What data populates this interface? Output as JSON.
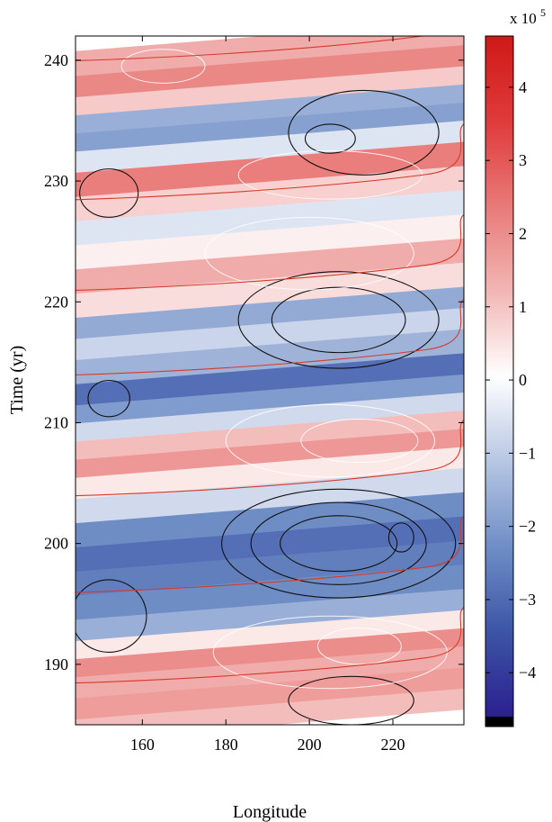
{
  "chart_data": {
    "type": "heatmap",
    "title": "",
    "xlabel": "Longitude",
    "ylabel": "Time (yr)",
    "xlim": [
      144,
      237
    ],
    "ylim": [
      185,
      242
    ],
    "x_ticks": [
      160,
      180,
      200,
      220
    ],
    "y_ticks": [
      190,
      200,
      210,
      220,
      230,
      240
    ],
    "colorbar": {
      "multiplier_base": "x 10",
      "multiplier_exponent": "5",
      "range": [
        -4.6,
        4.7
      ],
      "ticks": [
        -4,
        -3,
        -2,
        -1,
        0,
        1,
        2,
        3,
        4
      ],
      "colormap": [
        "#2b1f8f",
        "#3d55a6",
        "#6f8ec6",
        "#b7c6e3",
        "#ffffff",
        "#f2b6b4",
        "#e87a78",
        "#e03a3a",
        "#d01818"
      ],
      "low_cap_color": "#000000"
    },
    "bands": [
      {
        "t": 186.0,
        "v": 1.1
      },
      {
        "t": 187.5,
        "v": 1.7
      },
      {
        "t": 189.5,
        "v": 1.4
      },
      {
        "t": 191.0,
        "v": 2.0
      },
      {
        "t": 192.5,
        "v": 0.4
      },
      {
        "t": 194.0,
        "v": -1.6
      },
      {
        "t": 196.0,
        "v": -2.3
      },
      {
        "t": 198.0,
        "v": -2.6
      },
      {
        "t": 200.0,
        "v": -2.9
      },
      {
        "t": 202.0,
        "v": -2.3
      },
      {
        "t": 204.0,
        "v": -0.7
      },
      {
        "t": 206.0,
        "v": 0.4
      },
      {
        "t": 207.5,
        "v": 1.8
      },
      {
        "t": 209.0,
        "v": 1.1
      },
      {
        "t": 210.5,
        "v": -0.7
      },
      {
        "t": 212.0,
        "v": -2.0
      },
      {
        "t": 213.5,
        "v": -2.9
      },
      {
        "t": 215.5,
        "v": -1.5
      },
      {
        "t": 217.5,
        "v": -0.8
      },
      {
        "t": 219.0,
        "v": -1.7
      },
      {
        "t": 221.0,
        "v": 0.6
      },
      {
        "t": 223.0,
        "v": 1.4
      },
      {
        "t": 225.0,
        "v": 0.3
      },
      {
        "t": 227.0,
        "v": -0.5
      },
      {
        "t": 229.0,
        "v": 0.8
      },
      {
        "t": 231.0,
        "v": 2.3
      },
      {
        "t": 233.0,
        "v": -0.5
      },
      {
        "t": 234.5,
        "v": -1.9
      },
      {
        "t": 236.0,
        "v": -1.6
      },
      {
        "t": 237.5,
        "v": 0.9
      },
      {
        "t": 239.0,
        "v": 2.1
      },
      {
        "t": 241.0,
        "v": 1.4
      }
    ],
    "contours": {
      "negative": [
        {
          "center": [
            207,
            200
          ],
          "half_width": [
            28,
            4.5
          ]
        },
        {
          "center": [
            207,
            200
          ],
          "half_width": [
            21,
            3.4
          ]
        },
        {
          "center": [
            207,
            200
          ],
          "half_width": [
            14,
            2.3
          ]
        },
        {
          "center": [
            222,
            200.5
          ],
          "half_width": [
            3,
            1.2
          ]
        },
        {
          "center": [
            207,
            218.5
          ],
          "half_width": [
            24,
            4
          ]
        },
        {
          "center": [
            207,
            218.5
          ],
          "half_width": [
            16,
            2.7
          ]
        },
        {
          "center": [
            152,
            212
          ],
          "half_width": [
            5,
            1.5
          ]
        },
        {
          "center": [
            213,
            234
          ],
          "half_width": [
            18,
            3.5
          ]
        },
        {
          "center": [
            205,
            233.5
          ],
          "half_width": [
            6,
            1.2
          ]
        },
        {
          "center": [
            152,
            229
          ],
          "half_width": [
            7,
            2
          ]
        },
        {
          "center": [
            152,
            194
          ],
          "half_width": [
            9,
            3
          ]
        },
        {
          "center": [
            210,
            187
          ],
          "half_width": [
            15,
            2
          ]
        }
      ],
      "positive": [
        {
          "center": [
            205,
            191
          ],
          "half_width": [
            28,
            3
          ]
        },
        {
          "center": [
            212,
            191.5
          ],
          "half_width": [
            10,
            1.5
          ]
        },
        {
          "center": [
            205,
            208.5
          ],
          "half_width": [
            25,
            3
          ]
        },
        {
          "center": [
            212,
            208.5
          ],
          "half_width": [
            14,
            1.8
          ]
        },
        {
          "center": [
            200,
            224
          ],
          "half_width": [
            25,
            3
          ]
        },
        {
          "center": [
            205,
            230.5
          ],
          "half_width": [
            22,
            2
          ]
        },
        {
          "center": [
            165,
            239.5
          ],
          "half_width": [
            10,
            1.4
          ]
        }
      ],
      "zero_lines_y": [
        189.5,
        197,
        205,
        215,
        222,
        229.5,
        241
      ]
    }
  }
}
